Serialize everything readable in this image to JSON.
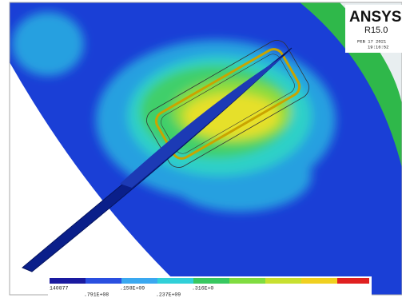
{
  "header": {
    "product": "ANSYS",
    "release": "R15.0",
    "date": "FEB 17 2021",
    "time": "19:16:52"
  },
  "legend": {
    "labels_top": [
      "140877",
      ".158E+09",
      ".316E+0"
    ],
    "labels_bottom": [
      ".791E+08",
      ".237E+09"
    ]
  }
}
